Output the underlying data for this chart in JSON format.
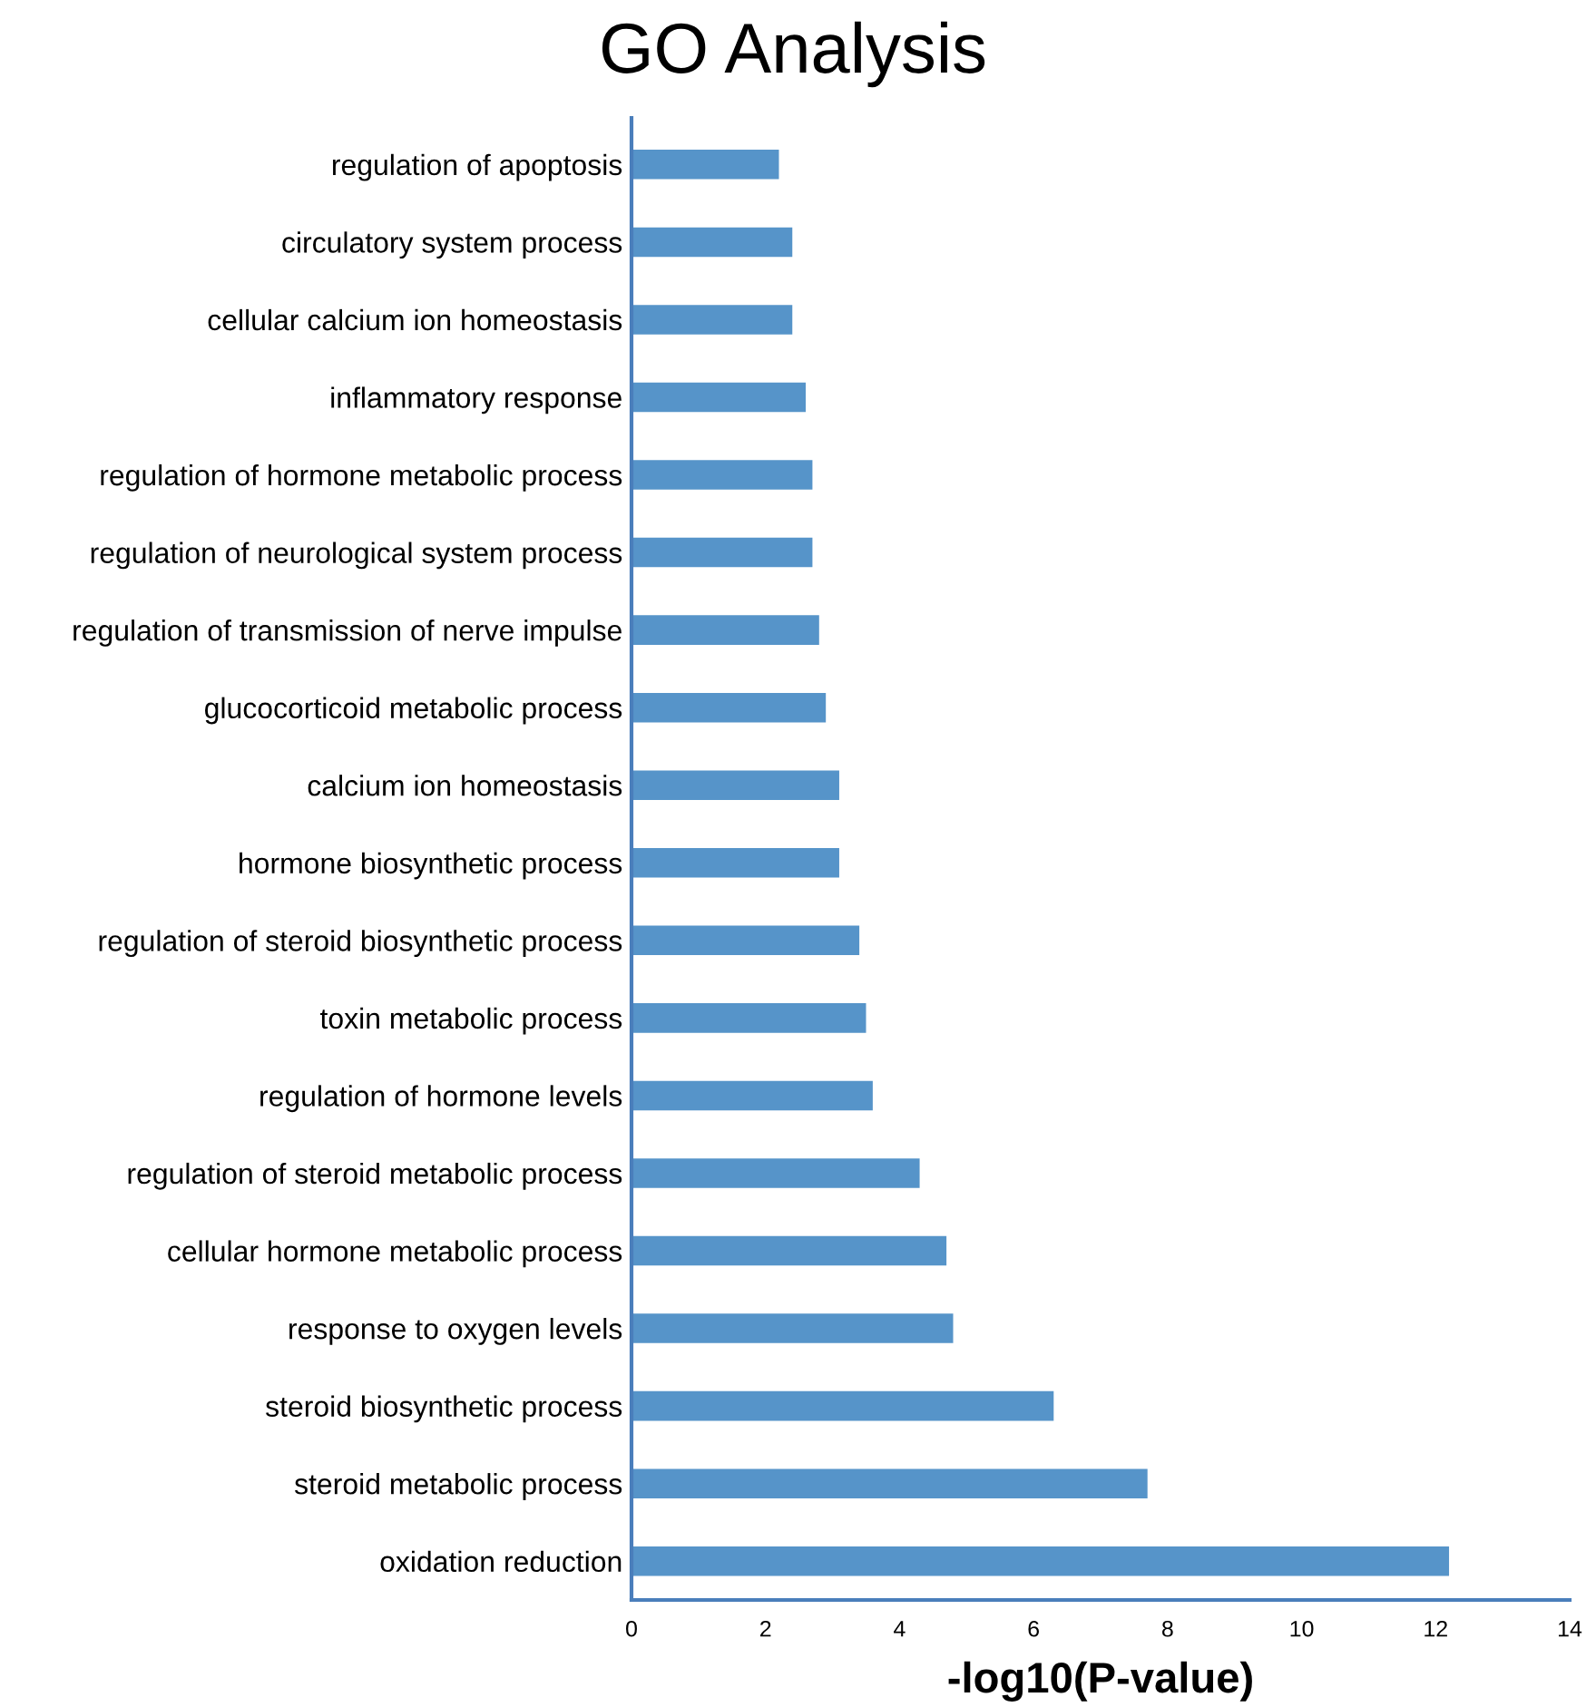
{
  "chart_data": {
    "type": "bar",
    "orientation": "horizontal",
    "title": "GO Analysis",
    "xlabel": "-log10(P-value)",
    "categories": [
      "regulation of apoptosis",
      "circulatory system process",
      "cellular calcium ion homeostasis",
      "inflammatory response",
      "regulation of hormone metabolic process",
      "regulation of neurological system process",
      "regulation of transmission of nerve impulse",
      "glucocorticoid metabolic process",
      "calcium ion homeostasis",
      "hormone biosynthetic process",
      "regulation of steroid biosynthetic process",
      "toxin metabolic process",
      "regulation of hormone levels",
      "regulation of steroid metabolic process",
      "cellular hormone metabolic process",
      "response to oxygen levels",
      "steroid biosynthetic process",
      "steroid metabolic process",
      "oxidation reduction"
    ],
    "values": [
      2.2,
      2.4,
      2.4,
      2.6,
      2.7,
      2.7,
      2.8,
      2.9,
      3.1,
      3.1,
      3.4,
      3.5,
      3.6,
      4.3,
      4.7,
      4.8,
      6.3,
      7.7,
      12.2
    ],
    "color": "#5694c9",
    "xlim": [
      0,
      14
    ],
    "xticks": [
      0,
      2,
      4,
      6,
      8,
      10,
      12,
      14
    ],
    "grid": false,
    "legend": false
  }
}
